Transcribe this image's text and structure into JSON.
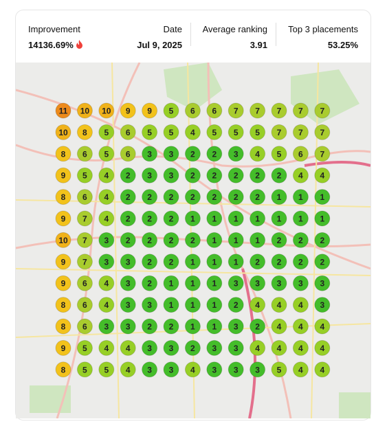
{
  "stats": [
    {
      "label": "Improvement",
      "value": "14136.69%"
    },
    {
      "label": "Date",
      "value": "Jul 9, 2025"
    },
    {
      "label": "Average ranking",
      "value": "3.91"
    },
    {
      "label": "Top 3 placements",
      "value": "53.25%"
    }
  ],
  "grid": {
    "rows": [
      [
        11,
        10,
        10,
        9,
        9,
        5,
        6,
        6,
        7,
        7,
        7,
        7,
        7
      ],
      [
        10,
        8,
        5,
        6,
        5,
        5,
        4,
        5,
        5,
        5,
        7,
        7,
        7
      ],
      [
        8,
        6,
        5,
        6,
        3,
        3,
        2,
        2,
        3,
        4,
        5,
        6,
        7
      ],
      [
        9,
        5,
        4,
        2,
        3,
        3,
        2,
        2,
        2,
        2,
        2,
        4,
        4
      ],
      [
        8,
        6,
        4,
        2,
        2,
        2,
        2,
        2,
        2,
        2,
        1,
        1,
        1
      ],
      [
        9,
        7,
        4,
        2,
        2,
        2,
        1,
        1,
        1,
        1,
        1,
        1,
        1
      ],
      [
        10,
        7,
        3,
        2,
        2,
        2,
        2,
        1,
        1,
        1,
        2,
        2,
        2
      ],
      [
        9,
        7,
        3,
        3,
        2,
        2,
        1,
        1,
        1,
        2,
        2,
        2,
        2
      ],
      [
        9,
        6,
        4,
        3,
        2,
        1,
        1,
        1,
        3,
        3,
        3,
        3,
        3
      ],
      [
        8,
        6,
        4,
        3,
        3,
        1,
        1,
        1,
        2,
        4,
        4,
        4,
        3
      ],
      [
        8,
        6,
        3,
        3,
        2,
        2,
        1,
        1,
        3,
        2,
        4,
        4,
        4
      ],
      [
        9,
        5,
        4,
        4,
        3,
        3,
        2,
        3,
        3,
        4,
        4,
        4,
        4
      ],
      [
        8,
        5,
        5,
        4,
        3,
        3,
        4,
        3,
        3,
        3,
        5,
        4,
        4
      ]
    ]
  }
}
